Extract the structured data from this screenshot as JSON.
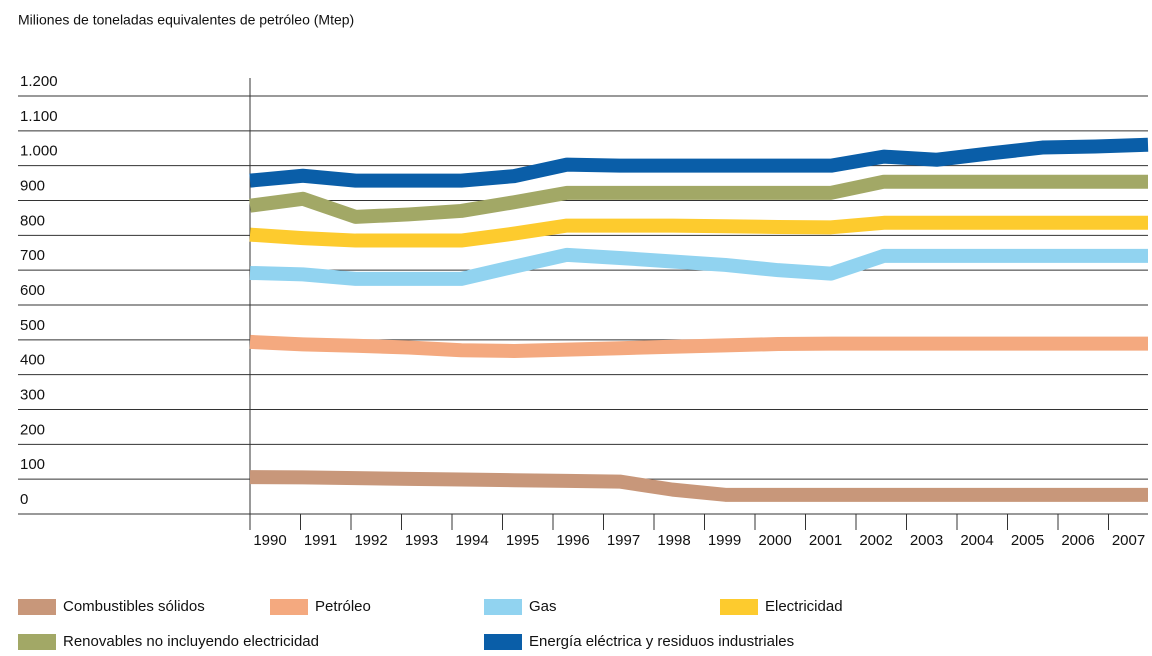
{
  "chart_data": {
    "type": "line",
    "title": "Miliones de toneladas equivalentes de petróleo (Mtep)",
    "categories": [
      "1990",
      "1991",
      "1992",
      "1993",
      "1994",
      "1995",
      "1996",
      "1997",
      "1998",
      "1999",
      "2000",
      "2001",
      "2002",
      "2003",
      "2004",
      "2005",
      "2006",
      "2007"
    ],
    "ylim": [
      0,
      1200
    ],
    "yticks": [
      0,
      100,
      200,
      300,
      400,
      500,
      600,
      700,
      800,
      900,
      {
        "value": 1000,
        "label": "1.000"
      },
      {
        "value": 1100,
        "label": "1.100"
      },
      {
        "value": 1200,
        "label": "1.200"
      }
    ],
    "grid": true,
    "series": [
      {
        "name": "Combustibles sólidos",
        "color": "#c8977a",
        "values": [
          106,
          105,
          103,
          101,
          99,
          97,
          95,
          93,
          70,
          55,
          55,
          55,
          55,
          55,
          55,
          55,
          55,
          55
        ]
      },
      {
        "name": "Petróleo",
        "color": "#f4a97f",
        "values": [
          494,
          487,
          483,
          478,
          470,
          468,
          472,
          476,
          480,
          484,
          488,
          489,
          489,
          489,
          489,
          489,
          489,
          489
        ]
      },
      {
        "name": "Gas",
        "color": "#91d3f0",
        "values": [
          692,
          688,
          675,
          675,
          675,
          710,
          744,
          735,
          725,
          715,
          700,
          690,
          741,
          741,
          741,
          741,
          741,
          741
        ]
      },
      {
        "name": "Electricidad",
        "color": "#fdcb2e",
        "values": [
          802,
          792,
          785,
          785,
          785,
          805,
          828,
          828,
          828,
          826,
          824,
          823,
          836,
          836,
          836,
          836,
          836,
          836
        ]
      },
      {
        "name": "Renovables no incluyendo electricidad",
        "color": "#a2a866",
        "values": [
          885,
          905,
          853,
          860,
          870,
          895,
          922,
          922,
          922,
          922,
          922,
          922,
          954,
          954,
          954,
          954,
          954,
          954
        ]
      },
      {
        "name": "Energía eléctrica y residuos industriales",
        "color": "#0a5ea8",
        "values": [
          957,
          971,
          957,
          957,
          957,
          970,
          1003,
          1000,
          1000,
          1000,
          1000,
          1000,
          1026,
          1017,
          1035,
          1052,
          1055,
          1060
        ]
      }
    ]
  }
}
